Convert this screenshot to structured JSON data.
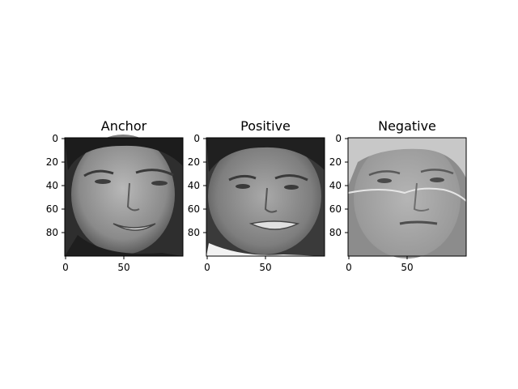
{
  "figure": {
    "panels": [
      {
        "title": "Anchor",
        "image": "grayscale face crop of a man with dark hair, squinting, slight grin",
        "xticks": [
          "0",
          "50"
        ],
        "yticks": [
          "0",
          "20",
          "40",
          "60",
          "80"
        ]
      },
      {
        "title": "Positive",
        "image": "grayscale face crop of the same man, grimacing smile",
        "xticks": [
          "0",
          "50"
        ],
        "yticks": [
          "0",
          "20",
          "40",
          "60",
          "80"
        ]
      },
      {
        "title": "Negative",
        "image": "grayscale face crop of an older woman with glasses and light hair",
        "xticks": [
          "0",
          "50"
        ],
        "yticks": [
          "0",
          "20",
          "40",
          "60",
          "80"
        ]
      }
    ]
  }
}
